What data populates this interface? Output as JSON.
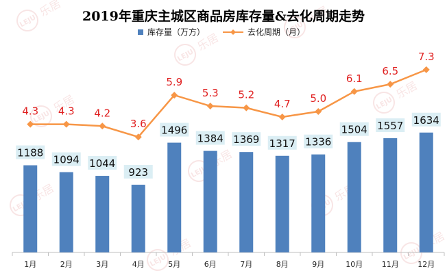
{
  "chart_data": {
    "type": "bar",
    "title": "2019年重庆主城区商品房库存量&去化周期走势",
    "categories": [
      "1月",
      "2月",
      "3月",
      "4月",
      "5月",
      "6月",
      "7月",
      "8月",
      "9月",
      "10月",
      "11月",
      "12月"
    ],
    "series": [
      {
        "name": "库存量（万方）",
        "type": "bar",
        "values": [
          1188,
          1094,
          1044,
          923,
          1496,
          1384,
          1369,
          1317,
          1336,
          1504,
          1557,
          1634
        ],
        "color": "#4f81bd"
      },
      {
        "name": "去化周期（月）",
        "type": "line",
        "values": [
          4.3,
          4.3,
          4.2,
          3.6,
          5.9,
          5.3,
          5.2,
          4.7,
          5.0,
          6.1,
          6.5,
          7.3
        ],
        "color": "#f79646"
      }
    ],
    "value_labels": {
      "bars": [
        "1188",
        "1094",
        "1044",
        "923",
        "1496",
        "1384",
        "1369",
        "1317",
        "1336",
        "1504",
        "1557",
        "1634"
      ],
      "line": [
        "4.3",
        "4.3",
        "4.2",
        "3.6",
        "5.9",
        "5.3",
        "5.2",
        "4.7",
        "5.0",
        "6.1",
        "6.5",
        "7.3"
      ]
    },
    "bar_axis_range": [
      0,
      2900
    ],
    "line_axis_range": [
      -2.75,
      8.95
    ],
    "grid": false,
    "legend_placement": "top"
  },
  "watermark": {
    "text": "乐居",
    "logo": "LEJU"
  }
}
